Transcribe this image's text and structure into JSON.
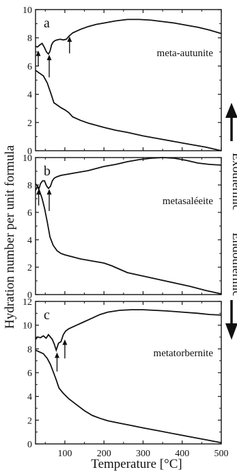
{
  "figure": {
    "ylabel": "Hydration number per unit formula",
    "xlabel": "Temperature [°C]",
    "right_label_exo": "Exothermic",
    "right_label_endo": "Endothermic",
    "colors": {
      "line": "#111111",
      "frame": "#111111",
      "background": "#ffffff"
    }
  },
  "chart_data": [
    {
      "type": "line",
      "panel_letter": "a",
      "mineral_label": "meta-autunite",
      "xlim": [
        25,
        500
      ],
      "ylim": [
        0,
        10
      ],
      "xticks": [
        100,
        200,
        300,
        400,
        500
      ],
      "xtick_labels": [],
      "yticks": [
        0,
        2,
        4,
        6,
        8,
        10
      ],
      "ytick_labels": [
        "0",
        "2",
        "4",
        "6",
        "8",
        "10"
      ],
      "grid": false,
      "dta_curve": {
        "x": [
          25,
          30,
          36,
          42,
          48,
          53,
          58,
          62,
          66,
          70,
          75,
          80,
          88,
          96,
          104,
          110,
          120,
          140,
          160,
          180,
          200,
          230,
          260,
          290,
          320,
          350,
          380,
          410,
          440,
          470,
          500
        ],
        "y": [
          7.4,
          7.35,
          7.5,
          7.6,
          7.3,
          7.0,
          6.85,
          7.05,
          7.5,
          7.7,
          7.8,
          7.85,
          7.9,
          7.85,
          7.9,
          8.1,
          8.35,
          8.6,
          8.8,
          8.95,
          9.05,
          9.2,
          9.3,
          9.3,
          9.25,
          9.15,
          9.05,
          8.9,
          8.75,
          8.55,
          8.3
        ]
      },
      "tg_curve": {
        "x": [
          25,
          35,
          45,
          55,
          65,
          72,
          80,
          90,
          100,
          110,
          120,
          140,
          160,
          180,
          200,
          230,
          260,
          300,
          340,
          380,
          420,
          460,
          500
        ],
        "y": [
          5.7,
          5.5,
          5.3,
          4.8,
          4.0,
          3.4,
          3.25,
          3.05,
          2.9,
          2.7,
          2.4,
          2.15,
          1.95,
          1.8,
          1.65,
          1.45,
          1.3,
          1.05,
          0.85,
          0.65,
          0.45,
          0.25,
          0.0
        ]
      },
      "arrows": [
        {
          "x": 32,
          "y_tip": 7.1,
          "y_tail": 6.0
        },
        {
          "x": 60,
          "y_tip": 6.8,
          "y_tail": 5.2
        },
        {
          "x": 112,
          "y_tip": 8.1,
          "y_tail": 6.9
        }
      ]
    },
    {
      "type": "line",
      "panel_letter": "b",
      "mineral_label": "metasaléeite",
      "xlim": [
        25,
        500
      ],
      "ylim": [
        0,
        10
      ],
      "xticks": [
        100,
        200,
        300,
        400,
        500
      ],
      "xtick_labels": [],
      "yticks": [
        0,
        2,
        4,
        6,
        8,
        10
      ],
      "ytick_labels": [
        "0",
        "2",
        "4",
        "6",
        "8",
        "10"
      ],
      "grid": false,
      "dta_curve": {
        "x": [
          25,
          30,
          34,
          38,
          43,
          48,
          53,
          58,
          63,
          68,
          73,
          80,
          90,
          100,
          120,
          140,
          160,
          180,
          200,
          230,
          260,
          290,
          320,
          350,
          380,
          410,
          440,
          470,
          500
        ],
        "y": [
          7.6,
          7.9,
          7.75,
          8.1,
          8.3,
          8.3,
          7.95,
          7.75,
          7.9,
          8.3,
          8.5,
          8.6,
          8.7,
          8.75,
          8.85,
          8.95,
          9.05,
          9.2,
          9.35,
          9.5,
          9.7,
          9.85,
          9.95,
          10.0,
          9.95,
          9.8,
          9.6,
          9.5,
          9.45
        ]
      },
      "tg_curve": {
        "x": [
          25,
          30,
          36,
          42,
          48,
          55,
          62,
          70,
          80,
          90,
          100,
          120,
          140,
          160,
          180,
          200,
          220,
          240,
          260,
          300,
          340,
          380,
          420,
          460,
          500
        ],
        "y": [
          8.1,
          7.9,
          7.5,
          7.0,
          6.3,
          5.3,
          4.2,
          3.6,
          3.2,
          3.0,
          2.9,
          2.75,
          2.6,
          2.5,
          2.4,
          2.3,
          2.1,
          1.85,
          1.6,
          1.35,
          1.1,
          0.85,
          0.6,
          0.3,
          0.05
        ]
      },
      "arrows": [
        {
          "x": 33,
          "y_tip": 7.7,
          "y_tail": 6.5
        },
        {
          "x": 60,
          "y_tip": 7.7,
          "y_tail": 6.1
        }
      ]
    },
    {
      "type": "line",
      "panel_letter": "c",
      "mineral_label": "metatorbernite",
      "xlim": [
        25,
        500
      ],
      "ylim": [
        0,
        12
      ],
      "xticks": [
        100,
        200,
        300,
        400,
        500
      ],
      "xtick_labels": [
        "100",
        "200",
        "300",
        "400",
        "500"
      ],
      "yticks": [
        0,
        2,
        4,
        6,
        8,
        10,
        12
      ],
      "ytick_labels": [
        "0",
        "2",
        "4",
        "6",
        "8",
        "10",
        "12"
      ],
      "grid": false,
      "dta_curve": {
        "x": [
          25,
          30,
          38,
          45,
          52,
          58,
          63,
          68,
          73,
          78,
          84,
          90,
          96,
          102,
          110,
          130,
          150,
          170,
          190,
          210,
          240,
          270,
          300,
          330,
          360,
          400,
          440,
          470,
          500
        ],
        "y": [
          8.8,
          9.0,
          8.95,
          9.1,
          8.9,
          9.2,
          9.0,
          8.8,
          8.4,
          7.9,
          8.5,
          8.6,
          9.2,
          9.5,
          9.7,
          10.0,
          10.3,
          10.6,
          10.9,
          11.1,
          11.25,
          11.3,
          11.3,
          11.25,
          11.2,
          11.1,
          11.0,
          10.9,
          10.85
        ]
      },
      "tg_curve": {
        "x": [
          25,
          35,
          45,
          55,
          63,
          70,
          78,
          85,
          95,
          110,
          130,
          150,
          170,
          190,
          210,
          240,
          270,
          300,
          340,
          380,
          420,
          460,
          500
        ],
        "y": [
          7.9,
          7.75,
          7.6,
          7.2,
          6.7,
          6.1,
          5.4,
          4.7,
          4.3,
          3.8,
          3.3,
          2.8,
          2.4,
          2.15,
          1.95,
          1.75,
          1.55,
          1.35,
          1.1,
          0.85,
          0.6,
          0.35,
          0.1
        ]
      },
      "arrows": [
        {
          "x": 80,
          "y_tip": 7.7,
          "y_tail": 6.1
        },
        {
          "x": 100,
          "y_tip": 8.8,
          "y_tail": 7.2
        }
      ]
    }
  ]
}
